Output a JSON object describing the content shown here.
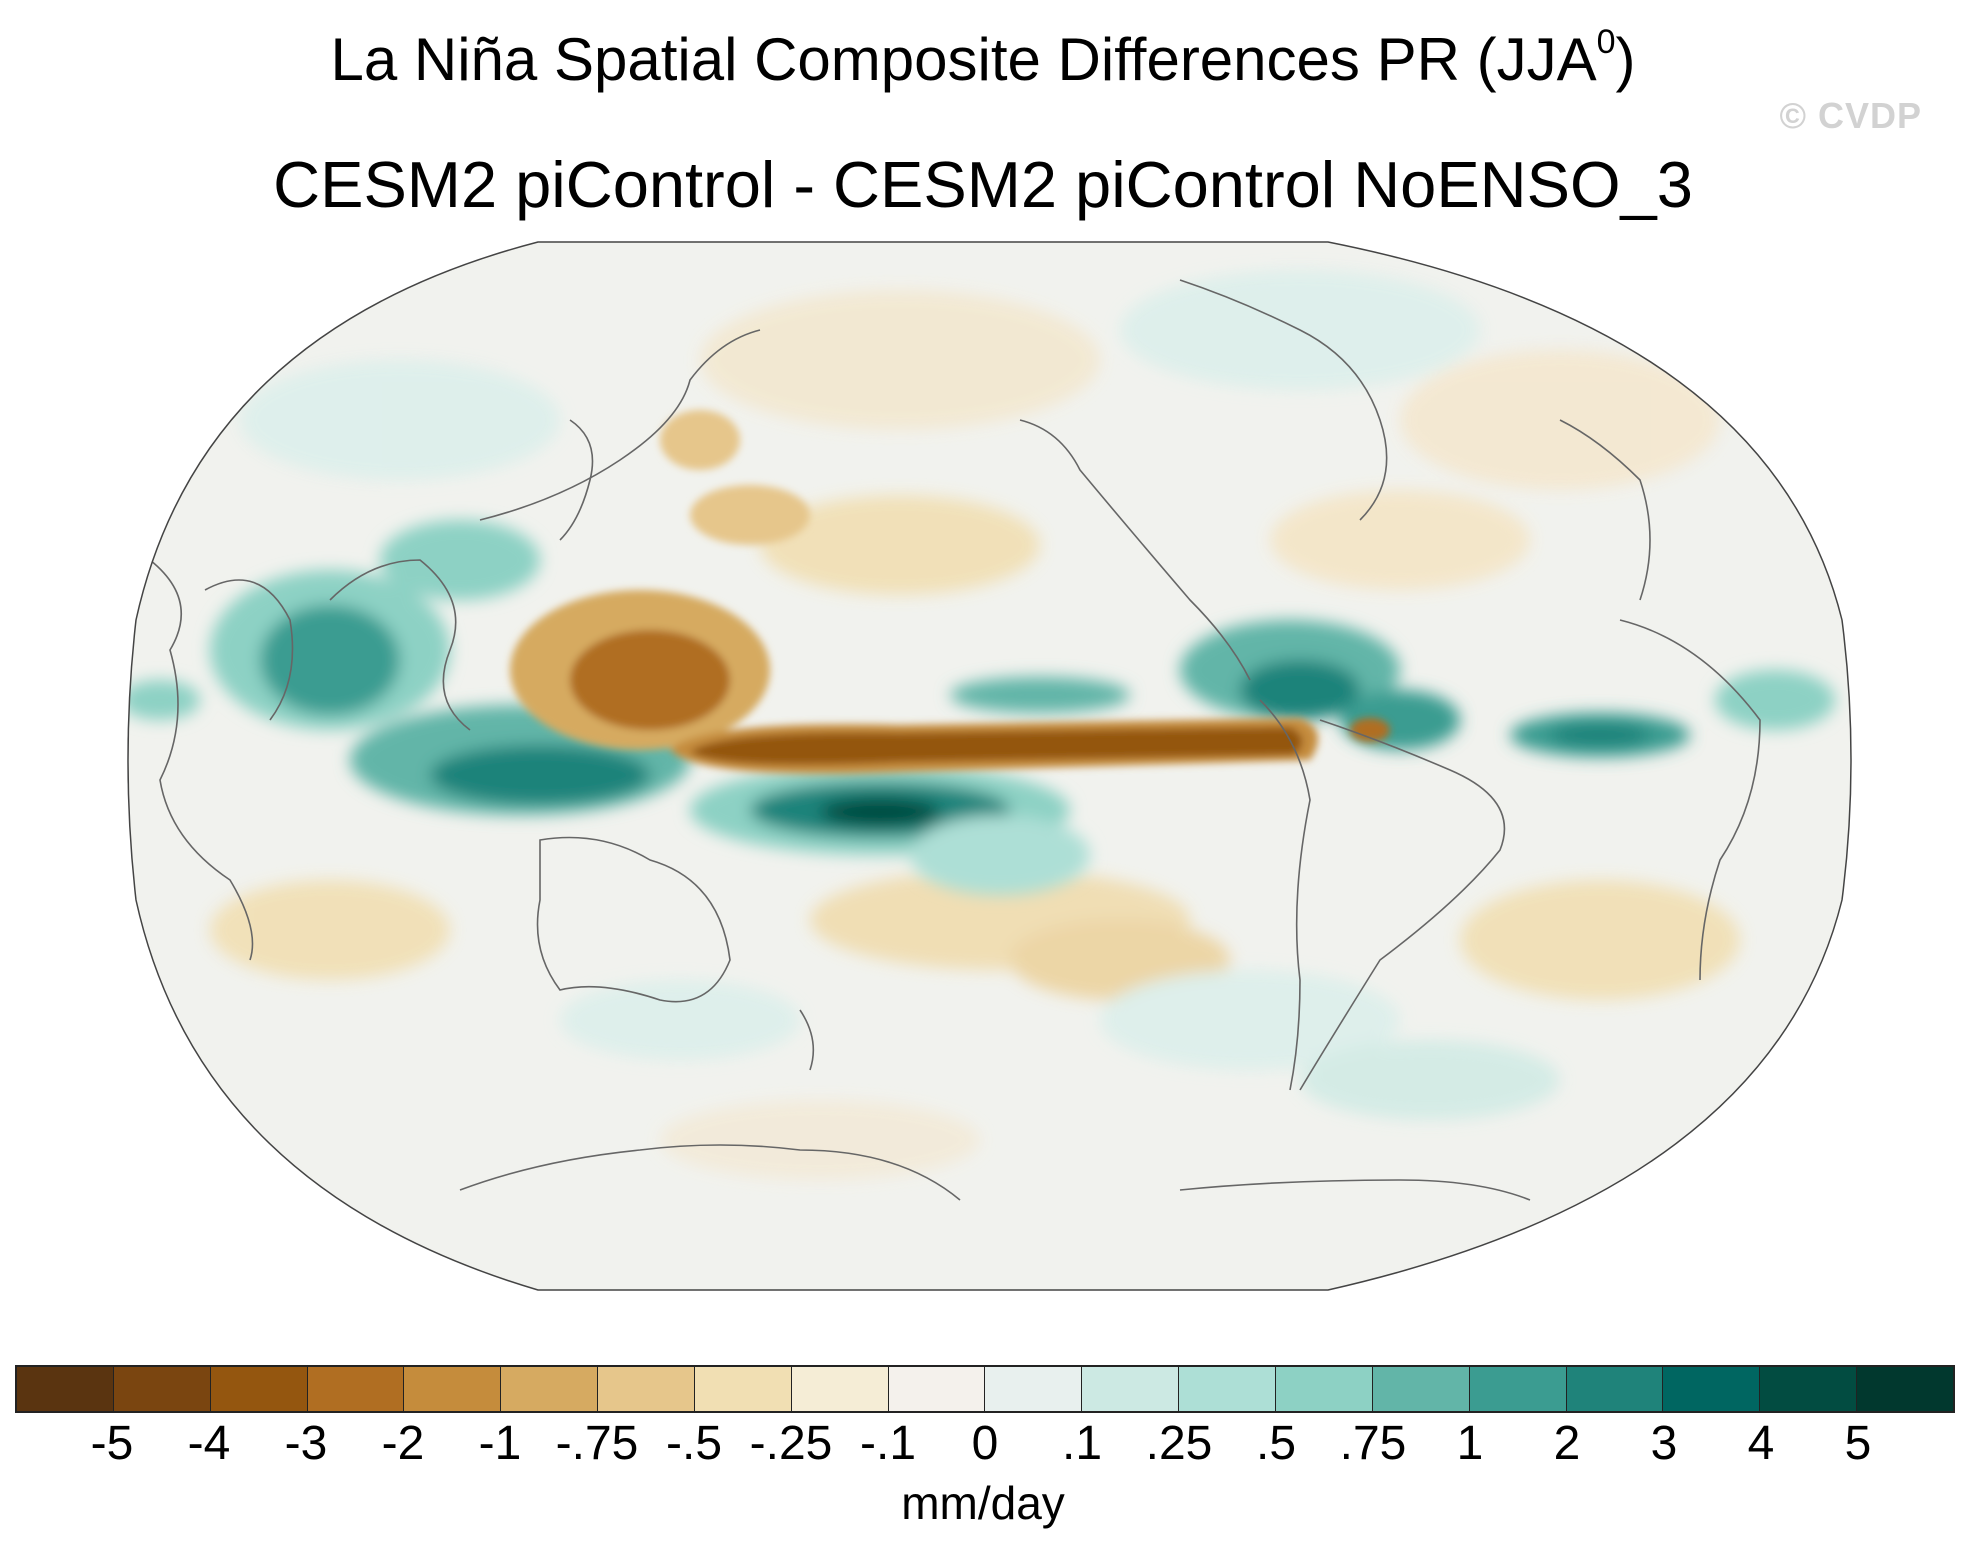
{
  "title_main": "La Niña Spatial Composite Differences PR (JJA",
  "title_sup": "0",
  "title_close": ")",
  "subtitle": "CESM2 piControl - CESM2 piControl NoENSO_3",
  "watermark": "© CVDP",
  "colorbar": {
    "labels": [
      "-5",
      "-4",
      "-3",
      "-2",
      "-1",
      "-.75",
      "-.5",
      "-.25",
      "-.1",
      "0",
      ".1",
      ".25",
      ".5",
      ".75",
      "1",
      "2",
      "3",
      "4",
      "5"
    ],
    "colors": [
      "#5a3410",
      "#7a4510",
      "#94560f",
      "#b06e22",
      "#c58c3c",
      "#d6aa61",
      "#e6c68b",
      "#f1dfb3",
      "#f5edd6",
      "#f4f1ec",
      "#e8f0ee",
      "#cce9e3",
      "#addfd6",
      "#8dd1c4",
      "#62b5a8",
      "#3b9c91",
      "#1f837a",
      "#006661",
      "#024c41",
      "#01382e"
    ],
    "units": "mm/day"
  },
  "chart_data": {
    "type": "heatmap",
    "title": "La Niña Spatial Composite Differences PR (JJA0)",
    "subtitle": "CESM2 piControl - CESM2 piControl NoENSO_3",
    "projection": "Robinson, centered 150W (Pacific)",
    "levels": [
      -5,
      -4,
      -3,
      -2,
      -1,
      -0.75,
      -0.5,
      -0.25,
      -0.1,
      0,
      0.1,
      0.25,
      0.5,
      0.75,
      1,
      2,
      3,
      4,
      5
    ],
    "units": "mm/day",
    "features": [
      {
        "name": "central-eastern equatorial Pacific dry tongue",
        "lon_start": 150,
        "lon_end": 280,
        "lat": 2,
        "value": -3.5
      },
      {
        "name": "western Pacific / Philippine Sea dry",
        "lon": 145,
        "lat": 15,
        "value": -2
      },
      {
        "name": "SPCZ / south-equatorial Pacific wet band",
        "lon_start": 150,
        "lon_end": 230,
        "lat": -5,
        "value": 3
      },
      {
        "name": "Maritime Continent wet",
        "lon": 120,
        "lat": -3,
        "value": 3
      },
      {
        "name": "Bay of Bengal / India wet",
        "lon": 85,
        "lat": 15,
        "value": 2
      },
      {
        "name": "Central America / Caribbean wet",
        "lon": 278,
        "lat": 12,
        "value": 2
      },
      {
        "name": "equatorial Atlantic ITCZ wet",
        "lon": 330,
        "lat": 4,
        "value": 2
      },
      {
        "name": "north equatorial Pacific wet streak",
        "lon": 230,
        "lat": 8,
        "value": 1.5
      },
      {
        "name": "southeast Pacific dry band",
        "lon": 220,
        "lat": -25,
        "value": -0.5
      },
      {
        "name": "South Atlantic dry",
        "lon": 350,
        "lat": -25,
        "value": -0.5
      }
    ]
  }
}
